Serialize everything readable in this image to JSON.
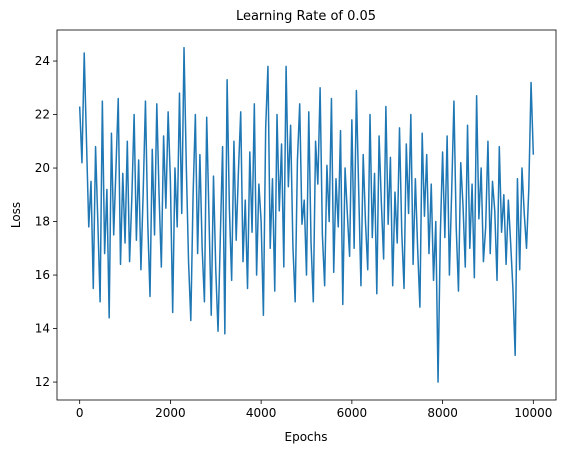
{
  "chart_data": {
    "type": "line",
    "title": "Learning Rate of 0.05",
    "x_label": "Epochs",
    "y_label": "Loss",
    "x": [
      0,
      50,
      100,
      150,
      200,
      250,
      300,
      350,
      400,
      450,
      500,
      550,
      600,
      650,
      700,
      750,
      800,
      850,
      900,
      950,
      1000,
      1050,
      1100,
      1150,
      1200,
      1250,
      1300,
      1350,
      1400,
      1450,
      1500,
      1550,
      1600,
      1650,
      1700,
      1750,
      1800,
      1850,
      1900,
      1950,
      2000,
      2050,
      2100,
      2150,
      2200,
      2250,
      2300,
      2350,
      2400,
      2450,
      2500,
      2550,
      2600,
      2650,
      2700,
      2750,
      2800,
      2850,
      2900,
      2950,
      3000,
      3050,
      3100,
      3150,
      3200,
      3250,
      3300,
      3350,
      3400,
      3450,
      3500,
      3550,
      3600,
      3650,
      3700,
      3750,
      3800,
      3850,
      3900,
      3950,
      4000,
      4050,
      4100,
      4150,
      4200,
      4250,
      4300,
      4350,
      4400,
      4450,
      4500,
      4550,
      4600,
      4650,
      4700,
      4750,
      4800,
      4850,
      4900,
      4950,
      5000,
      5050,
      5100,
      5150,
      5200,
      5250,
      5300,
      5350,
      5400,
      5450,
      5500,
      5550,
      5600,
      5650,
      5700,
      5750,
      5800,
      5850,
      5900,
      5950,
      6000,
      6050,
      6100,
      6150,
      6200,
      6250,
      6300,
      6350,
      6400,
      6450,
      6500,
      6550,
      6600,
      6650,
      6700,
      6750,
      6800,
      6850,
      6900,
      6950,
      7000,
      7050,
      7100,
      7150,
      7200,
      7250,
      7300,
      7350,
      7400,
      7450,
      7500,
      7550,
      7600,
      7650,
      7700,
      7750,
      7800,
      7850,
      7900,
      7950,
      8000,
      8050,
      8100,
      8150,
      8200,
      8250,
      8300,
      8350,
      8400,
      8450,
      8500,
      8550,
      8600,
      8650,
      8700,
      8750,
      8800,
      8850,
      8900,
      8950,
      9000,
      9050,
      9100,
      9150,
      9200,
      9250,
      9300,
      9350,
      9400,
      9450,
      9500,
      9550,
      9600,
      9650,
      9700,
      9750,
      9800,
      9850,
      9900,
      9950,
      10000
    ],
    "series": [
      {
        "color": "#1f77b4",
        "values": [
          22.3,
          20.2,
          24.3,
          21.0,
          17.8,
          19.5,
          15.5,
          20.8,
          18.0,
          15.0,
          22.5,
          16.8,
          19.2,
          14.4,
          21.3,
          17.5,
          20.0,
          22.6,
          16.4,
          19.8,
          17.2,
          21.0,
          16.5,
          18.9,
          22.0,
          17.3,
          20.3,
          16.2,
          19.1,
          22.5,
          18.0,
          15.2,
          20.7,
          17.5,
          22.4,
          19.0,
          16.3,
          21.2,
          18.5,
          22.1,
          19.5,
          14.6,
          20.0,
          17.8,
          22.8,
          18.3,
          24.5,
          20.1,
          16.5,
          14.3,
          19.0,
          22.0,
          16.8,
          20.5,
          17.0,
          15.0,
          21.9,
          18.2,
          14.5,
          19.7,
          16.2,
          13.9,
          17.4,
          20.8,
          13.8,
          23.3,
          18.5,
          15.8,
          21.0,
          17.3,
          19.9,
          22.1,
          16.5,
          18.8,
          15.5,
          20.6,
          17.6,
          22.4,
          16.0,
          19.4,
          18.0,
          14.5,
          21.5,
          23.8,
          17.0,
          19.6,
          15.4,
          22.0,
          18.4,
          20.9,
          16.3,
          23.8,
          19.3,
          21.6,
          17.1,
          15.0,
          20.3,
          22.4,
          17.9,
          18.8,
          16.0,
          22.1,
          17.2,
          15.0,
          21.0,
          19.4,
          23.0,
          17.5,
          15.6,
          20.1,
          18.0,
          22.6,
          16.1,
          19.6,
          17.8,
          21.4,
          14.9,
          20.0,
          18.3,
          16.7,
          21.8,
          17.0,
          22.9,
          19.2,
          15.6,
          20.5,
          18.0,
          16.2,
          22.0,
          17.4,
          19.8,
          15.3,
          21.2,
          18.7,
          16.6,
          22.3,
          17.9,
          20.4,
          15.6,
          19.1,
          17.2,
          21.5,
          17.6,
          15.5,
          20.9,
          18.3,
          22.0,
          16.4,
          19.6,
          17.0,
          14.8,
          21.3,
          18.2,
          20.5,
          16.8,
          19.4,
          15.8,
          18.0,
          12.0,
          17.5,
          20.6,
          17.4,
          21.2,
          16.0,
          19.1,
          22.5,
          17.8,
          15.4,
          20.2,
          18.6,
          16.3,
          21.6,
          17.0,
          19.4,
          15.9,
          22.7,
          18.1,
          20.0,
          16.5,
          17.8,
          21.0,
          16.8,
          19.5,
          18.4,
          15.8,
          20.8,
          17.6,
          19.0,
          16.4,
          18.8,
          17.2,
          15.5,
          13.0,
          19.6,
          16.2,
          20.0,
          18.3,
          17.0,
          19.2,
          23.2,
          20.5
        ]
      }
    ],
    "xlim": [
      -500,
      10500
    ],
    "ylim": [
      11.33,
      25.16
    ],
    "xticks": [
      0,
      2000,
      4000,
      6000,
      8000,
      10000
    ],
    "yticks": [
      12,
      14,
      16,
      18,
      20,
      22,
      24
    ]
  }
}
